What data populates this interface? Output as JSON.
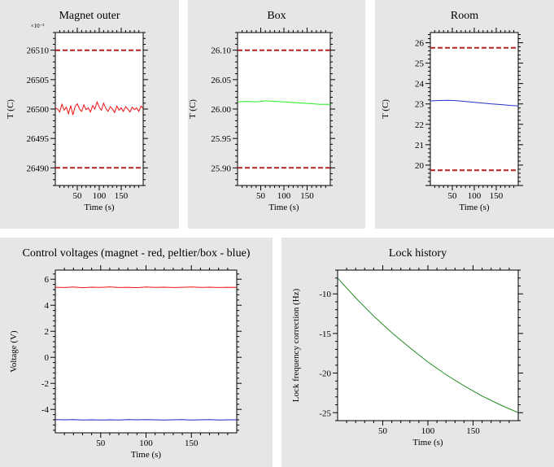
{
  "chart_data": [
    {
      "type": "line",
      "title": "Magnet outer",
      "xlabel": "Time (s)",
      "ylabel": "T (C)",
      "exponent_label": "×10⁻³",
      "xlim": [
        0,
        200
      ],
      "ylim": [
        26487,
        26513
      ],
      "xticks": [
        50,
        100,
        150
      ],
      "xtick_labels": [
        "50",
        "100",
        "150"
      ],
      "yticks": [
        26490,
        26495,
        26500,
        26505,
        26510
      ],
      "ytick_labels": [
        "26490",
        "26495",
        "26500",
        "26505",
        "26510"
      ],
      "reference_lines": [
        26510,
        26490
      ],
      "reference_color": "#b22222",
      "series": [
        {
          "color": "#ee1111",
          "x": [
            0,
            5,
            10,
            15,
            20,
            25,
            30,
            35,
            40,
            45,
            50,
            55,
            60,
            65,
            70,
            75,
            80,
            85,
            90,
            95,
            100,
            105,
            110,
            115,
            120,
            125,
            130,
            135,
            140,
            145,
            150,
            155,
            160,
            165,
            170,
            175,
            180,
            185,
            190,
            195,
            200
          ],
          "y": [
            26500.2,
            26500.0,
            26499.5,
            26500.8,
            26499.8,
            26500.3,
            26499.2,
            26500.6,
            26499.0,
            26500.4,
            26500.9,
            26500.0,
            26499.6,
            26500.7,
            26499.9,
            26500.2,
            26499.5,
            26500.6,
            26500.0,
            26501.2,
            26500.3,
            26499.8,
            26501.0,
            26500.1,
            26499.6,
            26500.4,
            26500.0,
            26499.4,
            26500.5,
            26499.8,
            26500.2,
            26499.6,
            26500.4,
            26500.0,
            26499.5,
            26500.3,
            26499.9,
            26500.2,
            26499.6,
            26500.5,
            26500.1
          ]
        }
      ]
    },
    {
      "type": "line",
      "title": "Box",
      "xlabel": "Time (s)",
      "ylabel": "T (C)",
      "xlim": [
        0,
        200
      ],
      "ylim": [
        25.87,
        26.13
      ],
      "xticks": [
        50,
        100,
        150
      ],
      "xtick_labels": [
        "50",
        "100",
        "150"
      ],
      "yticks": [
        25.9,
        25.95,
        26.0,
        26.05,
        26.1
      ],
      "ytick_labels": [
        "25.90",
        "25.95",
        "26.00",
        "26.05",
        "26.10"
      ],
      "reference_lines": [
        26.1,
        25.9
      ],
      "reference_color": "#b22222",
      "series": [
        {
          "color": "#22ee22",
          "x": [
            0,
            20,
            40,
            60,
            80,
            100,
            120,
            140,
            160,
            180,
            200
          ],
          "y": [
            26.012,
            26.013,
            26.012,
            26.014,
            26.013,
            26.012,
            26.011,
            26.01,
            26.009,
            26.008,
            26.008
          ]
        }
      ]
    },
    {
      "type": "line",
      "title": "Room",
      "xlabel": "Time (s)",
      "ylabel": "T (C)",
      "xlim": [
        0,
        200
      ],
      "ylim": [
        19.0,
        26.5
      ],
      "xticks": [
        50,
        100,
        150
      ],
      "xtick_labels": [
        "50",
        "100",
        "150"
      ],
      "yticks": [
        20,
        21,
        22,
        23,
        24,
        25,
        26
      ],
      "ytick_labels": [
        "20",
        "21",
        "22",
        "23",
        "24",
        "25",
        "26"
      ],
      "reference_lines": [
        25.75,
        19.75
      ],
      "reference_color": "#b22222",
      "series": [
        {
          "color": "#2233cc",
          "x": [
            0,
            20,
            40,
            60,
            80,
            100,
            120,
            140,
            160,
            180,
            200
          ],
          "y": [
            23.15,
            23.17,
            23.18,
            23.16,
            23.12,
            23.08,
            23.04,
            23.0,
            22.97,
            22.93,
            22.9
          ]
        }
      ]
    },
    {
      "type": "line",
      "title": "Control voltages (magnet - red, peltier/box - blue)",
      "xlabel": "Time (s)",
      "ylabel": "Voltage (V)",
      "xlim": [
        0,
        200
      ],
      "ylim": [
        -5.8,
        6.7
      ],
      "xticks": [
        50,
        100,
        150
      ],
      "xtick_labels": [
        "50",
        "100",
        "150"
      ],
      "yticks": [
        -4,
        -2,
        0,
        2,
        4,
        6
      ],
      "ytick_labels": [
        "-4",
        "-2",
        "0",
        "2",
        "4",
        "6"
      ],
      "series": [
        {
          "color": "#ee1111",
          "x": [
            0,
            10,
            20,
            30,
            40,
            50,
            60,
            70,
            80,
            90,
            100,
            110,
            120,
            130,
            140,
            150,
            160,
            170,
            180,
            190,
            200
          ],
          "y": [
            5.38,
            5.36,
            5.4,
            5.35,
            5.39,
            5.37,
            5.41,
            5.36,
            5.38,
            5.35,
            5.4,
            5.37,
            5.39,
            5.36,
            5.38,
            5.4,
            5.37,
            5.39,
            5.36,
            5.38,
            5.37
          ]
        },
        {
          "color": "#2222cc",
          "x": [
            0,
            10,
            20,
            30,
            40,
            50,
            60,
            70,
            80,
            90,
            100,
            110,
            120,
            130,
            140,
            150,
            160,
            170,
            180,
            190,
            200
          ],
          "y": [
            -4.78,
            -4.8,
            -4.79,
            -4.81,
            -4.8,
            -4.82,
            -4.8,
            -4.81,
            -4.79,
            -4.8,
            -4.78,
            -4.8,
            -4.81,
            -4.8,
            -4.79,
            -4.81,
            -4.8,
            -4.79,
            -4.81,
            -4.8,
            -4.8
          ]
        }
      ]
    },
    {
      "type": "line",
      "title": "Lock history",
      "xlabel": "Time (s)",
      "ylabel": "Lock frequency correction (Hz)",
      "xlim": [
        0,
        200
      ],
      "ylim": [
        -26,
        -7
      ],
      "xticks": [
        50,
        100,
        150
      ],
      "xtick_labels": [
        "50",
        "100",
        "150"
      ],
      "yticks": [
        -25,
        -20,
        -15,
        -10
      ],
      "ytick_labels": [
        "-25",
        "-20",
        "-15",
        "-10"
      ],
      "series": [
        {
          "color": "#228b22",
          "x": [
            0,
            20,
            40,
            60,
            80,
            100,
            120,
            140,
            160,
            180,
            200
          ],
          "y": [
            -8.0,
            -10.5,
            -12.8,
            -14.9,
            -16.8,
            -18.6,
            -20.2,
            -21.6,
            -22.9,
            -24.0,
            -25.0
          ]
        }
      ]
    }
  ]
}
